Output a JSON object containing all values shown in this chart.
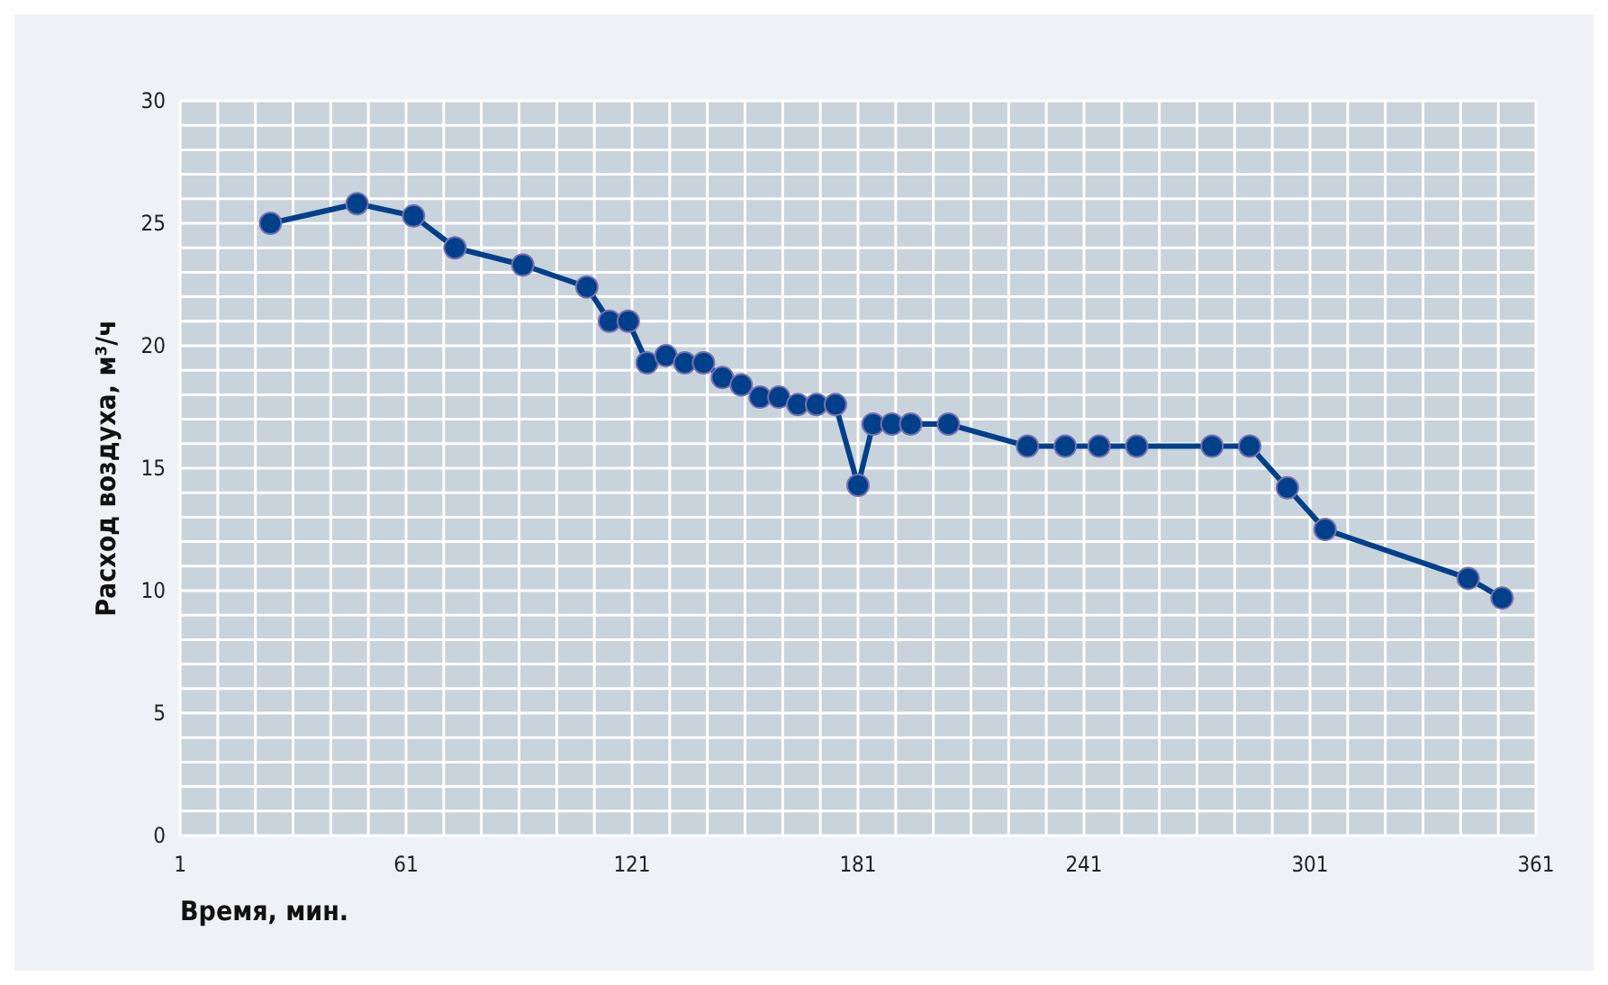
{
  "chart_data": {
    "type": "line",
    "xlabel": "Время, мин.",
    "ylabel": "Расход воздуха, м³/ч",
    "x": [
      25,
      48,
      63,
      74,
      92,
      109,
      115,
      120,
      125,
      130,
      135,
      140,
      145,
      150,
      155,
      160,
      165,
      170,
      175,
      181,
      185,
      190,
      195,
      205,
      226,
      236,
      245,
      255,
      275,
      285,
      295,
      305,
      343,
      352
    ],
    "series": [
      {
        "color": "#003f8a",
        "values": [
          25.0,
          25.8,
          25.3,
          24.0,
          23.3,
          22.4,
          21.0,
          21.0,
          19.3,
          19.6,
          19.3,
          19.3,
          18.7,
          18.4,
          17.9,
          17.9,
          17.6,
          17.6,
          17.6,
          14.3,
          16.8,
          16.8,
          16.8,
          16.8,
          15.9,
          15.9,
          15.9,
          15.9,
          15.9,
          15.9,
          14.2,
          12.5,
          10.5,
          9.7
        ]
      }
    ],
    "xlim": [
      1,
      361
    ],
    "ylim": [
      0,
      30
    ],
    "xticks": [
      1,
      {
        "value": 11,
        "label": null
      },
      {
        "value": 21,
        "label": null
      },
      {
        "value": 31,
        "label": null
      },
      {
        "value": 41,
        "label": null
      },
      {
        "value": 51,
        "label": null
      },
      61,
      {
        "value": 71,
        "label": null
      },
      {
        "value": 81,
        "label": null
      },
      {
        "value": 91,
        "label": null
      },
      {
        "value": 101,
        "label": null
      },
      {
        "value": 111,
        "label": null
      },
      121,
      {
        "value": 131,
        "label": null
      },
      {
        "value": 141,
        "label": null
      },
      {
        "value": 151,
        "label": null
      },
      {
        "value": 161,
        "label": null
      },
      {
        "value": 171,
        "label": null
      },
      181,
      {
        "value": 191,
        "label": null
      },
      {
        "value": 201,
        "label": null
      },
      {
        "value": 211,
        "label": null
      },
      {
        "value": 221,
        "label": null
      },
      {
        "value": 231,
        "label": null
      },
      241,
      {
        "value": 251,
        "label": null
      },
      {
        "value": 261,
        "label": null
      },
      {
        "value": 271,
        "label": null
      },
      {
        "value": 281,
        "label": null
      },
      {
        "value": 291,
        "label": null
      },
      301,
      {
        "value": 311,
        "label": null
      },
      {
        "value": 321,
        "label": null
      },
      {
        "value": 331,
        "label": null
      },
      {
        "value": 341,
        "label": null
      },
      {
        "value": 351,
        "label": null
      },
      361
    ],
    "yticks": [
      0,
      {
        "value": 1,
        "label": null
      },
      {
        "value": 2,
        "label": null
      },
      {
        "value": 3,
        "label": null
      },
      {
        "value": 4,
        "label": null
      },
      5,
      {
        "value": 6,
        "label": null
      },
      {
        "value": 7,
        "label": null
      },
      {
        "value": 8,
        "label": null
      },
      {
        "value": 9,
        "label": null
      },
      10,
      {
        "value": 11,
        "label": null
      },
      {
        "value": 12,
        "label": null
      },
      {
        "value": 13,
        "label": null
      },
      {
        "value": 14,
        "label": null
      },
      15,
      {
        "value": 16,
        "label": null
      },
      {
        "value": 17,
        "label": null
      },
      {
        "value": 18,
        "label": null
      },
      {
        "value": 19,
        "label": null
      },
      20,
      {
        "value": 21,
        "label": null
      },
      {
        "value": 22,
        "label": null
      },
      {
        "value": 23,
        "label": null
      },
      {
        "value": 24,
        "label": null
      },
      25,
      {
        "value": 26,
        "label": null
      },
      {
        "value": 27,
        "label": null
      },
      {
        "value": 28,
        "label": null
      },
      {
        "value": 29,
        "label": null
      },
      30
    ],
    "grid": true,
    "marker": "circle",
    "line_style": "solid"
  }
}
